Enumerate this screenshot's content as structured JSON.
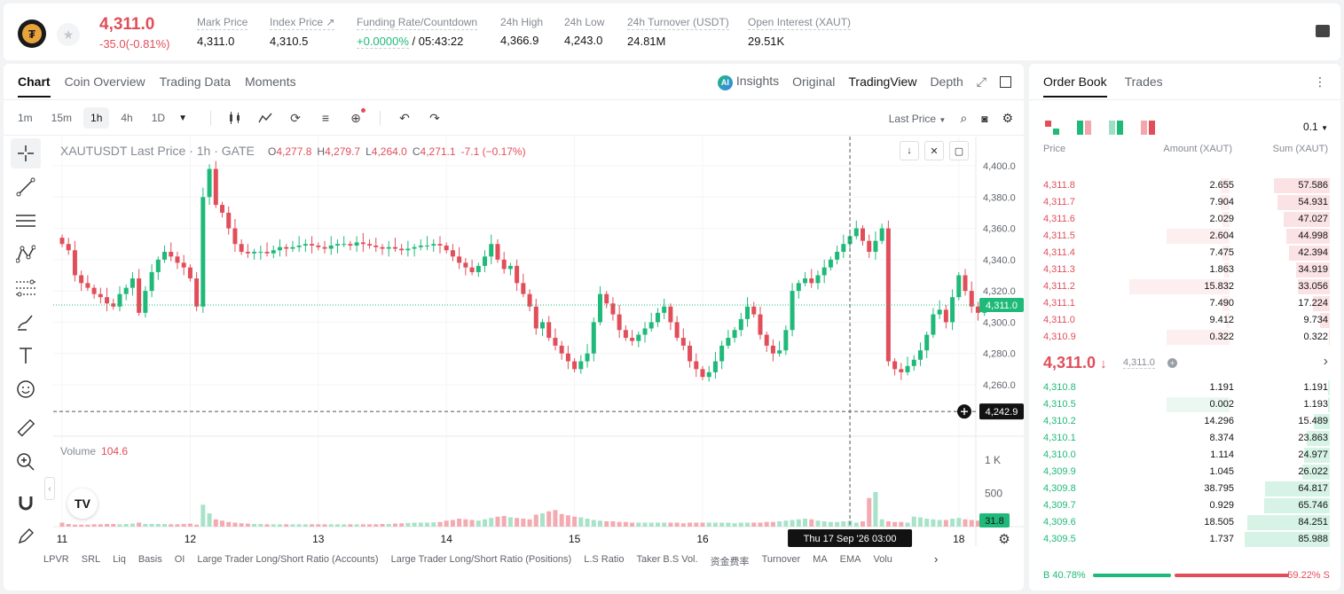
{
  "ticker": {
    "last_price": "4,311.0",
    "change": "-35.0(-0.81%)",
    "stats": [
      {
        "label": "Mark Price",
        "value": "4,311.0",
        "color": ""
      },
      {
        "label": "Index Price ↗",
        "value": "4,310.5",
        "color": ""
      },
      {
        "label": "Funding Rate/Countdown",
        "value": "+0.0000%",
        "value2": " / 05:43:22",
        "color": "green"
      },
      {
        "label": "24h High",
        "value": "4,366.9",
        "color": ""
      },
      {
        "label": "24h Low",
        "value": "4,243.0",
        "color": ""
      },
      {
        "label": "24h Turnover (USDT)",
        "value": "24.81M",
        "color": ""
      },
      {
        "label": "Open Interest (XAUT)",
        "value": "29.51K",
        "color": ""
      }
    ]
  },
  "chart_tabs": [
    "Chart",
    "Coin Overview",
    "Trading Data",
    "Moments"
  ],
  "view_tabs": {
    "insights": "Insights",
    "ai_badge": "AI",
    "original": "Original",
    "tradingview": "TradingView",
    "depth": "Depth"
  },
  "timeframes": [
    "1m",
    "15m",
    "1h",
    "4h",
    "1D"
  ],
  "price_type": "Last Price",
  "plot": {
    "title": "XAUTUSDT Last Price · 1h · GATE",
    "ohlc": [
      {
        "k": "O",
        "v": "4,277.8"
      },
      {
        "k": "H",
        "v": "4,279.7"
      },
      {
        "k": "L",
        "v": "4,264.0"
      },
      {
        "k": "C",
        "v": "4,271.1"
      }
    ],
    "change": "-7.1 (−0.17%)",
    "volume_label": "Volume",
    "volume_value": "104.6",
    "tv_logo": "TV"
  },
  "indicators": [
    "LPVR",
    "SRL",
    "Liq",
    "Basis",
    "OI",
    "Large Trader Long/Short Ratio (Accounts)",
    "Large Trader Long/Short Ratio (Positions)",
    "L.S Ratio",
    "Taker B.S Vol.",
    "资金费率",
    "Turnover",
    "MA",
    "EMA",
    "Volu"
  ],
  "chart_data": {
    "type": "candlestick",
    "symbol": "XAUTUSDT",
    "interval": "1h",
    "ylim": [
      4240,
      4405
    ],
    "y_ticks": [
      "4,400.0",
      "4,380.0",
      "4,360.0",
      "4,340.0",
      "4,320.0",
      "4,300.0",
      "4,280.0",
      "4,260.0"
    ],
    "y_tick_values": [
      4400,
      4380,
      4360,
      4340,
      4320,
      4300,
      4280,
      4260
    ],
    "x_ticks": [
      "11",
      "12",
      "13",
      "14",
      "15",
      "16",
      "18"
    ],
    "x_tick_index": [
      0,
      20,
      40,
      60,
      80,
      100,
      140
    ],
    "current_price_label": "4,311.0",
    "current_price": 4311.0,
    "crosshair_price_label": "4,242.9",
    "crosshair_price": 4242.9,
    "crosshair_time": "Thu 17 Sep '26   03:00",
    "crosshair_index": 123,
    "volume_ticks": [
      "1 K",
      "500"
    ],
    "volume_tick_values": [
      1000,
      500
    ],
    "volume_current": "31.8",
    "closes": [
      4350,
      4346,
      4330,
      4325,
      4322,
      4318,
      4316,
      4312,
      4310,
      4318,
      4322,
      4328,
      4306,
      4320,
      4332,
      4340,
      4345,
      4342,
      4338,
      4335,
      4328,
      4310,
      4380,
      4398,
      4375,
      4370,
      4360,
      4350,
      4345,
      4344,
      4345,
      4345,
      4344,
      4346,
      4348,
      4347,
      4348,
      4349,
      4350,
      4349,
      4348,
      4347,
      4349,
      4350,
      4350,
      4349,
      4351,
      4350,
      4349,
      4348,
      4347,
      4348,
      4347,
      4346,
      4347,
      4348,
      4349,
      4349,
      4350,
      4349,
      4346,
      4342,
      4338,
      4335,
      4332,
      4336,
      4342,
      4350,
      4340,
      4334,
      4336,
      4325,
      4318,
      4310,
      4296,
      4300,
      4290,
      4285,
      4280,
      4275,
      4270,
      4275,
      4280,
      4300,
      4318,
      4312,
      4305,
      4295,
      4290,
      4288,
      4292,
      4296,
      4300,
      4306,
      4310,
      4300,
      4290,
      4285,
      4275,
      4270,
      4265,
      4268,
      4275,
      4285,
      4290,
      4295,
      4302,
      4310,
      4305,
      4292,
      4285,
      4280,
      4282,
      4295,
      4320,
      4325,
      4328,
      4325,
      4330,
      4335,
      4340,
      4345,
      4350,
      4355,
      4360,
      4352,
      4345,
      4352,
      4360,
      4275,
      4270,
      4268,
      4272,
      4276,
      4282,
      4292,
      4305,
      4308,
      4300,
      4316,
      4330,
      4320,
      4310,
      4306,
      4310,
      4311
    ],
    "volumes": [
      60,
      40,
      30,
      30,
      30,
      35,
      35,
      40,
      40,
      35,
      40,
      45,
      60,
      40,
      40,
      40,
      40,
      35,
      35,
      40,
      45,
      30,
      330,
      200,
      110,
      90,
      70,
      60,
      50,
      45,
      40,
      40,
      35,
      35,
      35,
      35,
      35,
      35,
      35,
      35,
      35,
      35,
      35,
      35,
      35,
      35,
      35,
      35,
      35,
      35,
      40,
      40,
      45,
      50,
      55,
      60,
      60,
      60,
      65,
      70,
      90,
      100,
      120,
      110,
      100,
      90,
      110,
      130,
      150,
      160,
      140,
      130,
      120,
      110,
      180,
      200,
      230,
      250,
      190,
      170,
      150,
      140,
      120,
      100,
      90,
      80,
      80,
      70,
      70,
      60,
      60,
      60,
      60,
      60,
      60,
      60,
      60,
      50,
      60,
      60,
      60,
      60,
      60,
      60,
      60,
      50,
      60,
      60,
      60,
      60,
      70,
      70,
      80,
      90,
      100,
      110,
      120,
      110,
      90,
      80,
      70,
      70,
      80,
      90,
      60,
      80,
      430,
      520,
      110,
      80,
      70,
      70,
      60,
      150,
      140,
      120,
      110,
      100,
      100,
      120,
      130,
      110,
      100,
      90,
      80,
      70
    ]
  },
  "orderbook": {
    "tabs": [
      "Order Book",
      "Trades"
    ],
    "precision": "0.1",
    "headers": {
      "price": "Price",
      "amount": "Amount (XAUT)",
      "sum": "Sum (XAUT)"
    },
    "asks": [
      {
        "price": "4,311.8",
        "amount": "2.655",
        "sum": "57.586",
        "depth": 0.57,
        "vol": 0.05
      },
      {
        "price": "4,311.7",
        "amount": "7.904",
        "sum": "54.931",
        "depth": 0.54,
        "vol": 0.05
      },
      {
        "price": "4,311.6",
        "amount": "2.029",
        "sum": "47.027",
        "depth": 0.47,
        "vol": 0.04
      },
      {
        "price": "4,311.5",
        "amount": "2.604",
        "sum": "44.998",
        "depth": 0.45,
        "vol": 0.34
      },
      {
        "price": "4,311.4",
        "amount": "7.475",
        "sum": "42.394",
        "depth": 0.42,
        "vol": 0.04
      },
      {
        "price": "4,311.3",
        "amount": "1.863",
        "sum": "34.919",
        "depth": 0.35,
        "vol": 0.03
      },
      {
        "price": "4,311.2",
        "amount": "15.832",
        "sum": "33.056",
        "depth": 0.33,
        "vol": 0.54
      },
      {
        "price": "4,311.1",
        "amount": "7.490",
        "sum": "17.224",
        "depth": 0.17,
        "vol": 0.04
      },
      {
        "price": "4,311.0",
        "amount": "9.412",
        "sum": "9.734",
        "depth": 0.1,
        "vol": 0.02
      },
      {
        "price": "4,310.9",
        "amount": "0.322",
        "sum": "0.322",
        "depth": 0.01,
        "vol": 0.34
      }
    ],
    "mid_price": "4,311.0",
    "mid_arrow": "↓",
    "mark_price": "4,311.0",
    "bids": [
      {
        "price": "4,310.8",
        "amount": "1.191",
        "sum": "1.191",
        "depth": 0.02,
        "vol": 0.0
      },
      {
        "price": "4,310.5",
        "amount": "0.002",
        "sum": "1.193",
        "depth": 0.02,
        "vol": 0.34
      },
      {
        "price": "4,310.2",
        "amount": "14.296",
        "sum": "15.489",
        "depth": 0.16,
        "vol": 0.0
      },
      {
        "price": "4,310.1",
        "amount": "8.374",
        "sum": "23.863",
        "depth": 0.24,
        "vol": 0.0
      },
      {
        "price": "4,310.0",
        "amount": "1.114",
        "sum": "24.977",
        "depth": 0.26,
        "vol": 0.0
      },
      {
        "price": "4,309.9",
        "amount": "1.045",
        "sum": "26.022",
        "depth": 0.28,
        "vol": 0.0
      },
      {
        "price": "4,309.8",
        "amount": "38.795",
        "sum": "64.817",
        "depth": 0.66,
        "vol": 0.0
      },
      {
        "price": "4,309.7",
        "amount": "0.929",
        "sum": "65.746",
        "depth": 0.67,
        "vol": 0.0
      },
      {
        "price": "4,309.6",
        "amount": "18.505",
        "sum": "84.251",
        "depth": 0.85,
        "vol": 0.0
      },
      {
        "price": "4,309.5",
        "amount": "1.737",
        "sum": "85.988",
        "depth": 0.87,
        "vol": 0.0
      }
    ],
    "buy_ratio": "40.78%",
    "sell_ratio": "59.22%",
    "buy_fraction": 0.4078,
    "buy_label": "B",
    "sell_label": "S"
  },
  "colors": {
    "up": "#1fb979",
    "down": "#e14e5a",
    "up_light": "#e8f8f1",
    "down_light": "#fdeeef"
  }
}
